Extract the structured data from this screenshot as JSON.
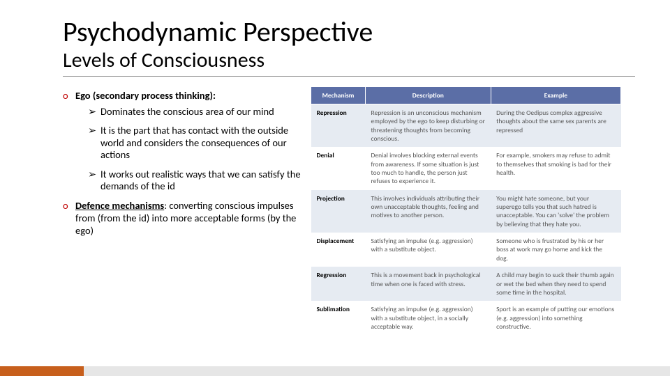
{
  "title": "Psychodynamic Perspective",
  "subtitle": "Levels of Consciousness",
  "left": {
    "ego_label": "Ego (secondary process thinking):",
    "ego_points": [
      "Dominates the conscious area of our mind",
      "It is the part that has contact with the outside world and considers the consequences of our actions",
      "It works out realistic ways that we can satisfy the demands of the id"
    ],
    "defence_label": "Defence mechanisms",
    "defence_rest": ": converting conscious impulses from (from the id) into more acceptable forms (by the ego)"
  },
  "table": {
    "headers": [
      "Mechanism",
      "Description",
      "Example"
    ],
    "rows": [
      {
        "mech": "Repression",
        "desc": "Repression is an unconscious mechanism employed by the ego to keep disturbing or threatening thoughts from becoming conscious.",
        "ex": "During the Oedipus complex aggressive thoughts about the same sex parents are repressed"
      },
      {
        "mech": "Denial",
        "desc": "Denial involves blocking external events from awareness. If some situation is just too much to handle, the person just refuses to experience it.",
        "ex": "For example, smokers may refuse to admit to themselves that smoking is bad for their health."
      },
      {
        "mech": "Projection",
        "desc": "This involves individuals attributing their own unacceptable thoughts, feeling and motives to another person.",
        "ex": "You might hate someone, but your superego tells you that such hatred is unacceptable. You can 'solve' the problem by believing that they hate you."
      },
      {
        "mech": "Displacement",
        "desc": "Satisfying an impulse (e.g. aggression) with a substitute object.",
        "ex": "Someone who is frustrated by his or her boss at work may go home and kick the dog."
      },
      {
        "mech": "Regression",
        "desc": "This is a movement back in psychological time when one is faced with stress.",
        "ex": "A child may begin to suck their thumb again or wet the bed when they need to spend some time in the hospital."
      },
      {
        "mech": "Sublimation",
        "desc": "Satisfying an impulse (e.g. aggression) with a substitute object, in a socially acceptable way.",
        "ex": "Sport is an example of putting our emotions (e.g. aggression) into something constructive."
      }
    ]
  },
  "colors": {
    "accent_red": "#c00000",
    "table_header_bg": "#5b6ea6",
    "table_alt_bg": "#e6ebf2",
    "footer_orange": "#c75f1c",
    "footer_grey": "#e6e6e6"
  }
}
